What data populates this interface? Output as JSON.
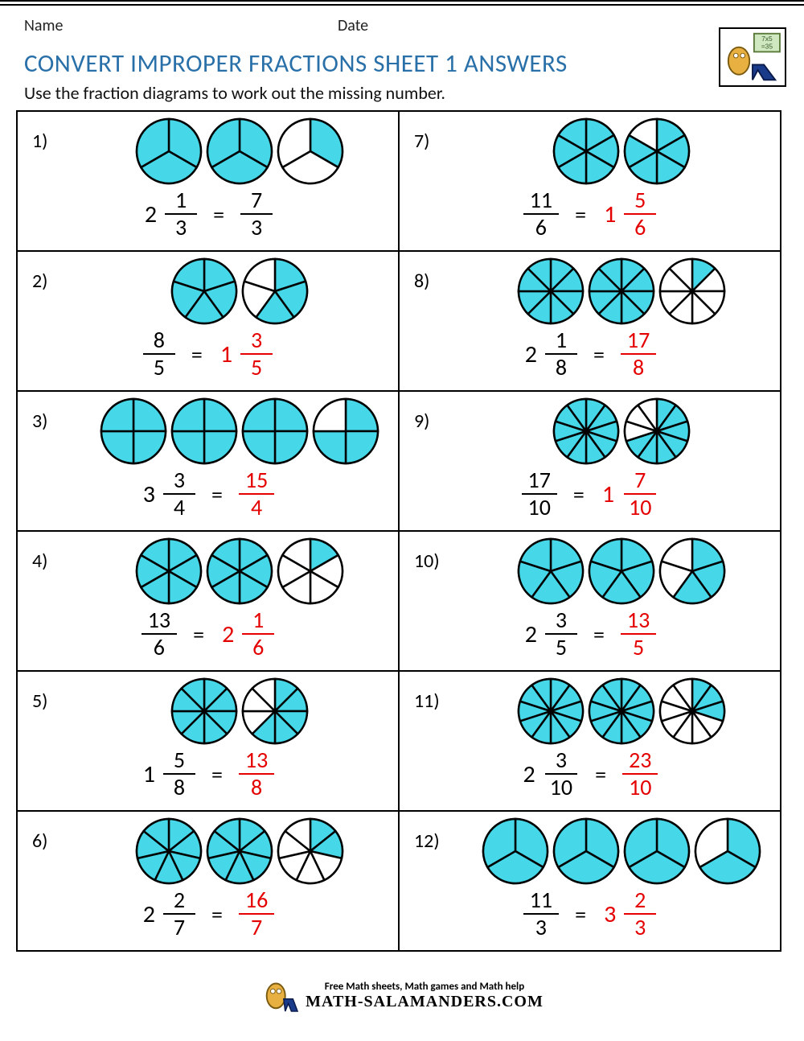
{
  "header": {
    "name_label": "Name",
    "date_label": "Date"
  },
  "title": "CONVERT IMPROPER FRACTIONS SHEET 1 ANSWERS",
  "instruction": "Use the fraction diagrams to work out the missing number.",
  "colors": {
    "fill": "#46d8e8",
    "stroke": "#000000",
    "answer": "#e40000",
    "title": "#2970a9"
  },
  "circle_radius": 40,
  "problems": [
    {
      "n": "1)",
      "circles": [
        {
          "den": 3,
          "shaded": 3
        },
        {
          "den": 3,
          "shaded": 3
        },
        {
          "den": 3,
          "shaded": 1
        }
      ],
      "left": {
        "whole": "2",
        "num": "1",
        "den": "3",
        "whole_red": false,
        "frac_red": false
      },
      "right": {
        "whole": "",
        "num": "7",
        "den": "3",
        "whole_red": false,
        "frac_red": false
      }
    },
    {
      "n": "2)",
      "circles": [
        {
          "den": 5,
          "shaded": 5
        },
        {
          "den": 5,
          "shaded": 3
        }
      ],
      "left": {
        "whole": "",
        "num": "8",
        "den": "5"
      },
      "right": {
        "whole": "1",
        "num": "3",
        "den": "5",
        "whole_red": true,
        "frac_red": true
      }
    },
    {
      "n": "3)",
      "circles": [
        {
          "den": 4,
          "shaded": 4
        },
        {
          "den": 4,
          "shaded": 4
        },
        {
          "den": 4,
          "shaded": 4
        },
        {
          "den": 4,
          "shaded": 3
        }
      ],
      "left": {
        "whole": "3",
        "num": "3",
        "den": "4"
      },
      "right": {
        "whole": "",
        "num": "15",
        "den": "4",
        "frac_red": true
      }
    },
    {
      "n": "4)",
      "circles": [
        {
          "den": 6,
          "shaded": 6
        },
        {
          "den": 6,
          "shaded": 6
        },
        {
          "den": 6,
          "shaded": 1
        }
      ],
      "left": {
        "whole": "",
        "num": "13",
        "den": "6"
      },
      "right": {
        "whole": "2",
        "num": "1",
        "den": "6",
        "whole_red": true,
        "frac_red": true
      }
    },
    {
      "n": "5)",
      "circles": [
        {
          "den": 8,
          "shaded": 8
        },
        {
          "den": 8,
          "shaded": 5
        }
      ],
      "left": {
        "whole": "1",
        "num": "5",
        "den": "8"
      },
      "right": {
        "whole": "",
        "num": "13",
        "den": "8",
        "frac_red": true
      }
    },
    {
      "n": "6)",
      "circles": [
        {
          "den": 7,
          "shaded": 7
        },
        {
          "den": 7,
          "shaded": 7
        },
        {
          "den": 7,
          "shaded": 2
        }
      ],
      "left": {
        "whole": "2",
        "num": "2",
        "den": "7"
      },
      "right": {
        "whole": "",
        "num": "16",
        "den": "7",
        "frac_red": true
      }
    },
    {
      "n": "7)",
      "circles": [
        {
          "den": 6,
          "shaded": 6
        },
        {
          "den": 6,
          "shaded": 5
        }
      ],
      "left": {
        "whole": "",
        "num": "11",
        "den": "6"
      },
      "right": {
        "whole": "1",
        "num": "5",
        "den": "6",
        "whole_red": true,
        "frac_red": true
      }
    },
    {
      "n": "8)",
      "circles": [
        {
          "den": 8,
          "shaded": 8
        },
        {
          "den": 8,
          "shaded": 8
        },
        {
          "den": 8,
          "shaded": 1
        }
      ],
      "left": {
        "whole": "2",
        "num": "1",
        "den": "8"
      },
      "right": {
        "whole": "",
        "num": "17",
        "den": "8",
        "frac_red": true
      }
    },
    {
      "n": "9)",
      "circles": [
        {
          "den": 10,
          "shaded": 10
        },
        {
          "den": 10,
          "shaded": 7
        }
      ],
      "left": {
        "whole": "",
        "num": "17",
        "den": "10"
      },
      "right": {
        "whole": "1",
        "num": "7",
        "den": "10",
        "whole_red": true,
        "frac_red": true
      }
    },
    {
      "n": "10)",
      "circles": [
        {
          "den": 5,
          "shaded": 5
        },
        {
          "den": 5,
          "shaded": 5
        },
        {
          "den": 5,
          "shaded": 3
        }
      ],
      "left": {
        "whole": "2",
        "num": "3",
        "den": "5"
      },
      "right": {
        "whole": "",
        "num": "13",
        "den": "5",
        "frac_red": true
      }
    },
    {
      "n": "11)",
      "circles": [
        {
          "den": 10,
          "shaded": 10
        },
        {
          "den": 10,
          "shaded": 10
        },
        {
          "den": 10,
          "shaded": 3
        }
      ],
      "left": {
        "whole": "2",
        "num": "3",
        "den": "10"
      },
      "right": {
        "whole": "",
        "num": "23",
        "den": "10",
        "frac_red": true
      }
    },
    {
      "n": "12)",
      "circles": [
        {
          "den": 3,
          "shaded": 3
        },
        {
          "den": 3,
          "shaded": 3
        },
        {
          "den": 3,
          "shaded": 3
        },
        {
          "den": 3,
          "shaded": 2
        }
      ],
      "left": {
        "whole": "",
        "num": "11",
        "den": "3"
      },
      "right": {
        "whole": "3",
        "num": "2",
        "den": "3",
        "whole_red": true,
        "frac_red": true
      }
    }
  ],
  "footer": {
    "line1": "Free Math sheets, Math games and Math help",
    "line2": "MATH-SALAMANDERS.COM"
  }
}
